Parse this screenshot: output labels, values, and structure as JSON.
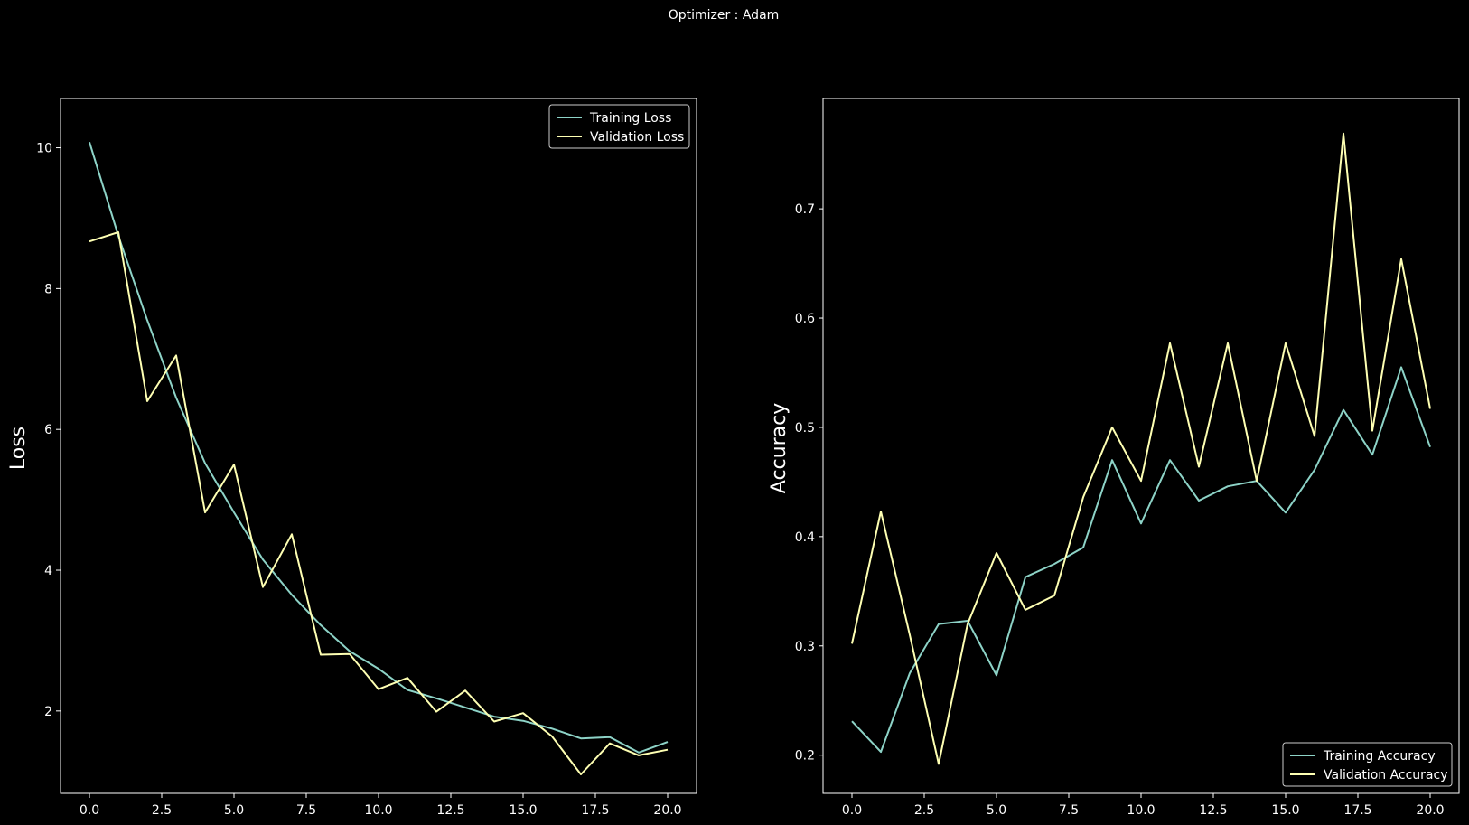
{
  "figure": {
    "suptitle": "Optimizer : Adam",
    "background": "#000000",
    "foreground": "#ffffff"
  },
  "colors": {
    "training": "#8dd3c7",
    "validation": "#feffb3"
  },
  "chart_data": [
    {
      "type": "line",
      "title": "",
      "xlabel": "",
      "ylabel": "Loss",
      "xlim": [
        -1.0,
        21.0
      ],
      "ylim": [
        0.83,
        10.7
      ],
      "xticks": [
        0,
        2.5,
        5,
        7.5,
        10,
        12.5,
        15,
        17.5,
        20
      ],
      "xtick_labels": [
        "0.0",
        "2.5",
        "5.0",
        "7.5",
        "10.0",
        "12.5",
        "15.0",
        "17.5",
        "20.0"
      ],
      "yticks": [
        2,
        4,
        6,
        8,
        10
      ],
      "ytick_labels": [
        "2",
        "4",
        "6",
        "8",
        "10"
      ],
      "grid": false,
      "legend": "top-right",
      "x": [
        0,
        1,
        2,
        3,
        4,
        5,
        6,
        7,
        8,
        9,
        10,
        11,
        12,
        13,
        14,
        15,
        16,
        17,
        18,
        19,
        20
      ],
      "series": [
        {
          "name": "Training Loss",
          "color": "#8dd3c7",
          "values": [
            10.08,
            8.75,
            7.55,
            6.45,
            5.52,
            4.82,
            4.15,
            3.65,
            3.22,
            2.85,
            2.6,
            2.3,
            2.18,
            2.05,
            1.92,
            1.86,
            1.75,
            1.61,
            1.63,
            1.41,
            1.56
          ]
        },
        {
          "name": "Validation Loss",
          "color": "#feffb3",
          "values": [
            8.67,
            8.8,
            6.4,
            7.05,
            4.82,
            5.5,
            3.76,
            4.51,
            2.8,
            2.81,
            2.31,
            2.47,
            1.99,
            2.29,
            1.85,
            1.97,
            1.64,
            1.1,
            1.54,
            1.37,
            1.45
          ]
        }
      ]
    },
    {
      "type": "line",
      "title": "",
      "xlabel": "",
      "ylabel": "Accuracy",
      "xlim": [
        -1.0,
        21.0
      ],
      "ylim": [
        0.165,
        0.801
      ],
      "xticks": [
        0,
        2.5,
        5,
        7.5,
        10,
        12.5,
        15,
        17.5,
        20
      ],
      "xtick_labels": [
        "0.0",
        "2.5",
        "5.0",
        "7.5",
        "10.0",
        "12.5",
        "15.0",
        "17.5",
        "20.0"
      ],
      "yticks": [
        0.2,
        0.3,
        0.4,
        0.5,
        0.6,
        0.7
      ],
      "ytick_labels": [
        "0.2",
        "0.3",
        "0.4",
        "0.5",
        "0.6",
        "0.7"
      ],
      "grid": false,
      "legend": "bottom-right",
      "x": [
        0,
        1,
        2,
        3,
        4,
        5,
        6,
        7,
        8,
        9,
        10,
        11,
        12,
        13,
        14,
        15,
        16,
        17,
        18,
        19,
        20
      ],
      "series": [
        {
          "name": "Training Accuracy",
          "color": "#8dd3c7",
          "values": [
            0.231,
            0.203,
            0.275,
            0.32,
            0.323,
            0.273,
            0.363,
            0.375,
            0.39,
            0.47,
            0.412,
            0.47,
            0.433,
            0.446,
            0.451,
            0.422,
            0.461,
            0.516,
            0.475,
            0.555,
            0.482
          ]
        },
        {
          "name": "Validation Accuracy",
          "color": "#feffb3",
          "values": [
            0.302,
            0.423,
            0.31,
            0.192,
            0.32,
            0.385,
            0.333,
            0.346,
            0.436,
            0.5,
            0.451,
            0.577,
            0.464,
            0.577,
            0.451,
            0.577,
            0.492,
            0.769,
            0.497,
            0.654,
            0.517
          ]
        }
      ]
    }
  ]
}
